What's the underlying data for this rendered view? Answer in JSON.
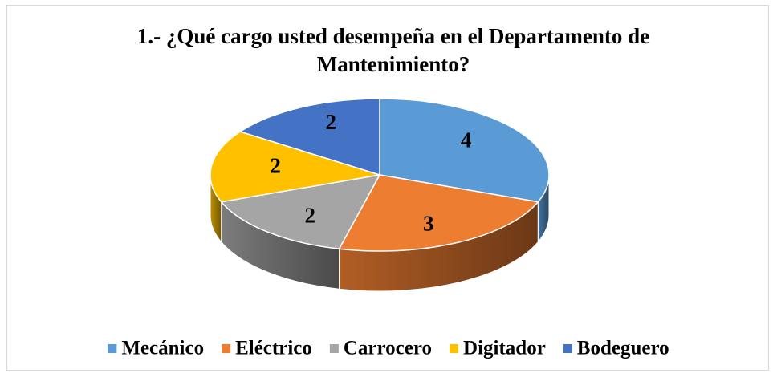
{
  "chart_data": {
    "type": "pie3d",
    "title": "1.- ¿Qué cargo usted desempeña en el Departamento de Mantenimiento?",
    "categories": [
      "Mecánico",
      "Eléctrico",
      "Carrocero",
      "Digitador",
      "Bodeguero"
    ],
    "values": [
      4,
      3,
      2,
      2,
      2
    ],
    "colors": [
      "#5b9bd5",
      "#ed7d31",
      "#a5a5a5",
      "#ffc000",
      "#4472c4"
    ],
    "legend": "bottom"
  }
}
